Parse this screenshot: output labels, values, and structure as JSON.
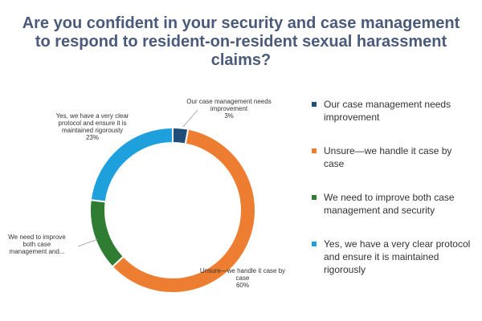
{
  "title": "Are you confident in your security and case management to respond to resident-on-resident sexual harassment claims?",
  "chart_data": {
    "type": "pie",
    "style": "donut",
    "title": "Are you confident in your security and case management to respond to resident-on-resident sexual harassment claims?",
    "legend_position": "right",
    "slices": [
      {
        "legend": "Our case management needs improvement",
        "label_lines": [
          "Our case management needs",
          "improvement"
        ],
        "value": 3,
        "value_label": "3%",
        "color": "#1f4e79"
      },
      {
        "legend": "Unsure—we handle it case by case",
        "label_lines": [
          "Unsure—we handle it case by",
          "case"
        ],
        "value": 60,
        "value_label": "60%",
        "color": "#ed7d31"
      },
      {
        "legend": "We need to improve both case management and security",
        "label_lines": [
          "We need to improve",
          "both case",
          "management and..."
        ],
        "value": 14,
        "value_label": "",
        "color": "#2e7d32"
      },
      {
        "legend": "Yes, we have a very clear protocol and ensure it is maintained rigorously",
        "label_lines": [
          "Yes, we have a very clear",
          "protocol and ensure it is",
          "maintained rigorously"
        ],
        "value": 23,
        "value_label": "23%",
        "color": "#1ea0dc"
      }
    ]
  }
}
